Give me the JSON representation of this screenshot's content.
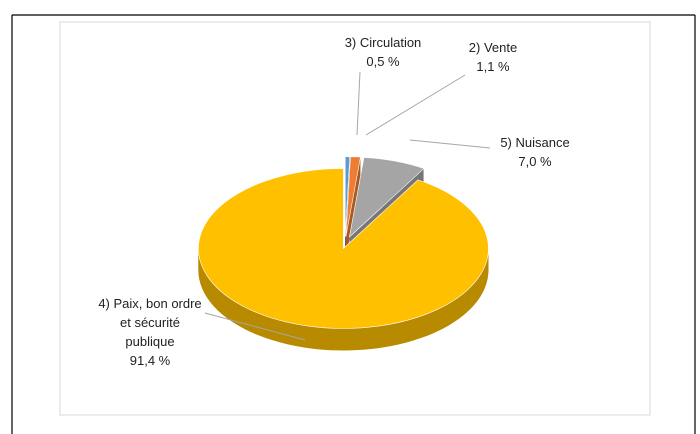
{
  "chart_data": {
    "type": "pie3d",
    "categories": [
      "3) Circulation",
      "2) Vente",
      "5) Nuisance",
      "4) Paix, bon ordre et sécurité publique"
    ],
    "values": [
      0.5,
      1.1,
      7.0,
      91.4
    ],
    "value_labels": [
      "0,5 %",
      "1,1 %",
      "7,0 %",
      "91,4 %"
    ],
    "colors": [
      "#5b9bd5",
      "#ed7d31",
      "#a5a5a5",
      "#ffc000"
    ]
  }
}
